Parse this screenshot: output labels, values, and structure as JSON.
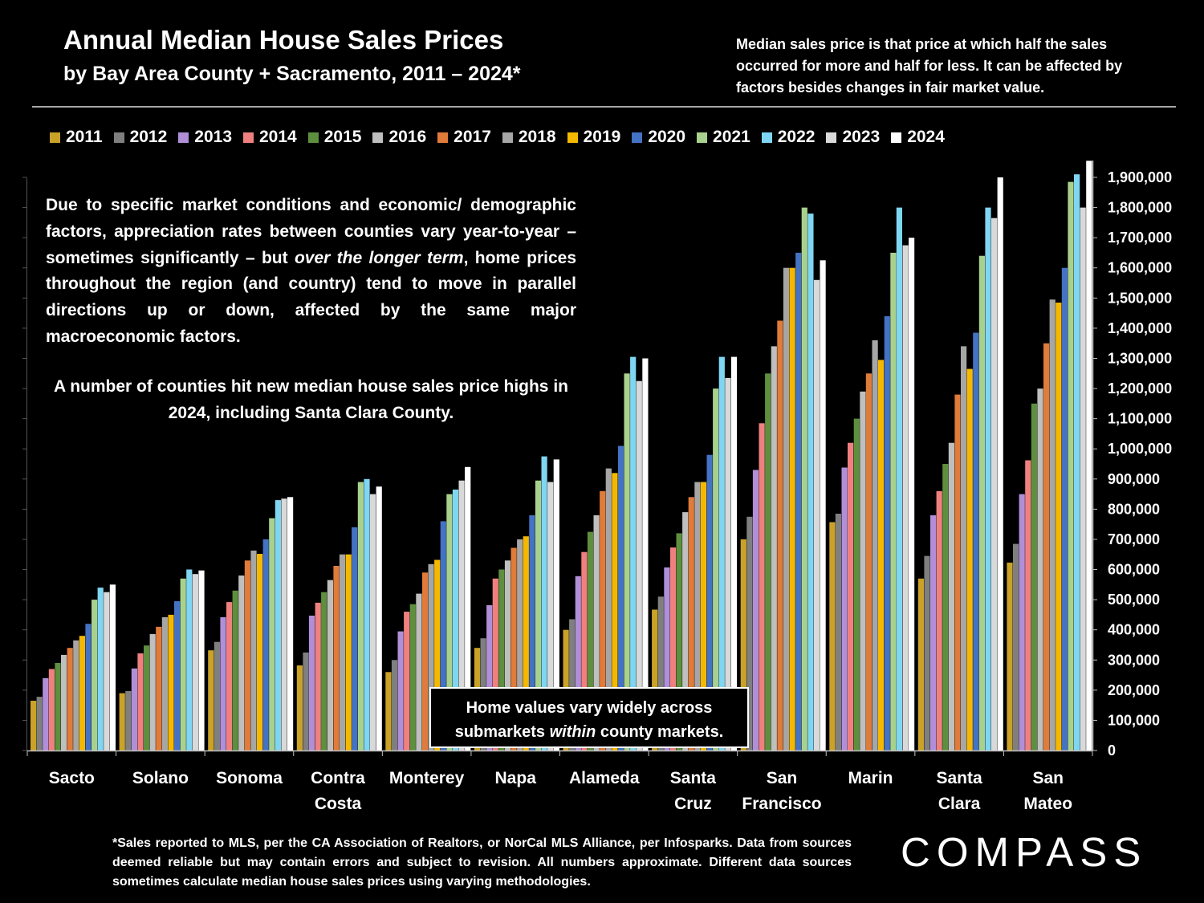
{
  "header": {
    "title": "Annual Median House Sales Prices",
    "subtitle": "by Bay Area County + Sacramento, 2011 – 2024*",
    "note": "Median sales price is that price at which half the sales occurred for more and half for less. It can be affected by factors besides changes in fair market value."
  },
  "annotation": {
    "para1_a": "Due to specific market conditions and economic/ demographic factors, appreciation rates between counties vary year-to-year – sometimes significantly – but ",
    "para1_em": "over the longer term",
    "para1_b": ", home prices throughout the region (and country) tend to move in parallel directions up or down, affected by the same major macroeconomic factors.",
    "para2": "A number of counties hit new median house sales price highs in 2024, including Santa Clara County."
  },
  "callout": {
    "line1": "Home values vary widely across",
    "line2_a": "submarkets ",
    "line2_em": "within",
    "line2_b": " county markets."
  },
  "footnote": "*Sales reported to MLS, per the CA Association of Realtors, or NorCal MLS Alliance, per Infosparks. Data from sources deemed reliable but may contain errors and subject to revision. All numbers approximate. Different data sources sometimes calculate median house sales prices using varying methodologies.",
  "logo": "COMPASS",
  "chart_data": {
    "type": "bar",
    "categories": [
      [
        "Sacto"
      ],
      [
        "Solano"
      ],
      [
        "Sonoma"
      ],
      [
        "Contra",
        "Costa"
      ],
      [
        "Monterey"
      ],
      [
        "Napa"
      ],
      [
        "Alameda"
      ],
      [
        "Santa",
        "Cruz"
      ],
      [
        "San",
        "Francisco"
      ],
      [
        "Marin"
      ],
      [
        "Santa",
        "Clara"
      ],
      [
        "San",
        "Mateo"
      ]
    ],
    "ylim": [
      0,
      1900000
    ],
    "yticks": [
      0,
      100000,
      200000,
      300000,
      400000,
      500000,
      600000,
      700000,
      800000,
      900000,
      1000000,
      1100000,
      1200000,
      1300000,
      1400000,
      1500000,
      1600000,
      1700000,
      1800000,
      1900000
    ],
    "ytick_labels": [
      "0",
      "100,000",
      "200,000",
      "300,000",
      "400,000",
      "500,000",
      "600,000",
      "700,000",
      "800,000",
      "900,000",
      "1,000,000",
      "1,100,000",
      "1,200,000",
      "1,300,000",
      "1,400,000",
      "1,500,000",
      "1,600,000",
      "1,700,000",
      "1,800,000",
      "1,900,000"
    ],
    "legend_position": "top",
    "series": [
      {
        "name": "2011",
        "color": "#C9A227",
        "values": [
          165000,
          190000,
          332000,
          282000,
          260000,
          340000,
          400000,
          467000,
          700000,
          757000,
          570000,
          623000
        ]
      },
      {
        "name": "2012",
        "color": "#7F7F7F",
        "values": [
          178000,
          197000,
          360000,
          325000,
          300000,
          372000,
          435000,
          510000,
          775000,
          785000,
          645000,
          685000
        ]
      },
      {
        "name": "2013",
        "color": "#B08FD8",
        "values": [
          240000,
          272000,
          442000,
          447000,
          395000,
          482000,
          578000,
          607000,
          930000,
          938000,
          780000,
          850000
        ]
      },
      {
        "name": "2014",
        "color": "#F08080",
        "values": [
          270000,
          322000,
          492000,
          490000,
          460000,
          570000,
          658000,
          673000,
          1085000,
          1020000,
          860000,
          962000
        ]
      },
      {
        "name": "2015",
        "color": "#5E8F3E",
        "values": [
          290000,
          348000,
          530000,
          525000,
          485000,
          600000,
          725000,
          720000,
          1250000,
          1100000,
          950000,
          1150000
        ]
      },
      {
        "name": "2016",
        "color": "#BFBFBF",
        "values": [
          317000,
          386000,
          580000,
          565000,
          520000,
          630000,
          780000,
          790000,
          1340000,
          1190000,
          1020000,
          1200000
        ]
      },
      {
        "name": "2017",
        "color": "#E07B39",
        "values": [
          340000,
          410000,
          630000,
          612000,
          590000,
          672000,
          860000,
          840000,
          1425000,
          1250000,
          1180000,
          1350000
        ]
      },
      {
        "name": "2018",
        "color": "#A6A6A6",
        "values": [
          365000,
          442000,
          663000,
          650000,
          618000,
          700000,
          935000,
          890000,
          1600000,
          1360000,
          1340000,
          1495000
        ]
      },
      {
        "name": "2019",
        "color": "#F5B800",
        "values": [
          380000,
          450000,
          652000,
          650000,
          632000,
          710000,
          920000,
          890000,
          1600000,
          1295000,
          1265000,
          1485000
        ]
      },
      {
        "name": "2020",
        "color": "#4472C4",
        "values": [
          420000,
          495000,
          700000,
          740000,
          760000,
          780000,
          1010000,
          980000,
          1650000,
          1440000,
          1385000,
          1600000
        ]
      },
      {
        "name": "2021",
        "color": "#A9D18E",
        "values": [
          500000,
          570000,
          770000,
          890000,
          850000,
          895000,
          1250000,
          1200000,
          1800000,
          1650000,
          1640000,
          1885000
        ]
      },
      {
        "name": "2022",
        "color": "#7FD6F2",
        "values": [
          540000,
          600000,
          830000,
          900000,
          865000,
          975000,
          1305000,
          1305000,
          1780000,
          1800000,
          1800000,
          1910000
        ]
      },
      {
        "name": "2023",
        "color": "#D9D9D9",
        "values": [
          525000,
          585000,
          835000,
          850000,
          895000,
          890000,
          1225000,
          1235000,
          1560000,
          1675000,
          1765000,
          1800000
        ]
      },
      {
        "name": "2024",
        "color": "#FFFFFF",
        "values": [
          550000,
          597000,
          840000,
          875000,
          940000,
          965000,
          1300000,
          1305000,
          1625000,
          1700000,
          1900000,
          1955000
        ]
      }
    ]
  }
}
